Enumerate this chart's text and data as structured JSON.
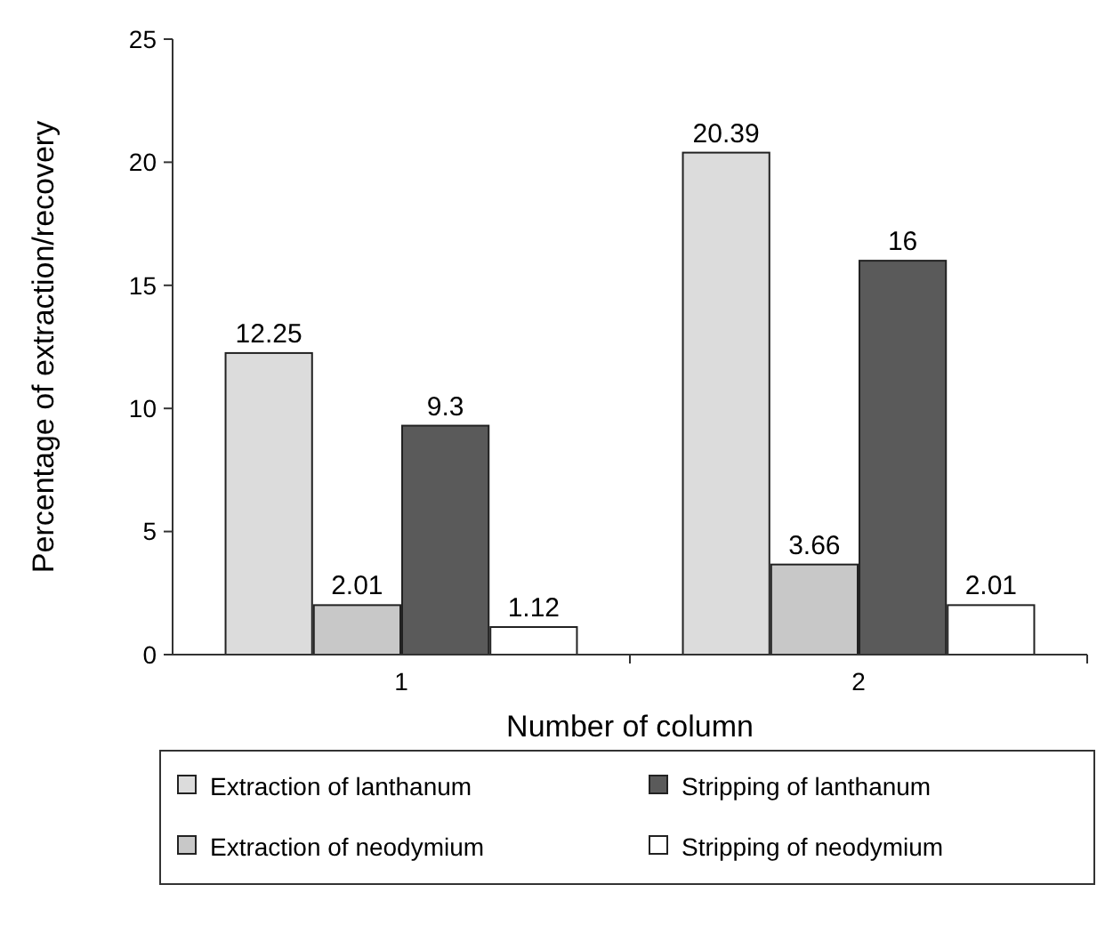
{
  "chart_data": {
    "type": "bar",
    "xlabel": "Number of column",
    "ylabel": "Percentage of extraction/recovery",
    "categories": [
      "1",
      "2"
    ],
    "series": [
      {
        "name": "Extraction of lanthanum",
        "color": "#dcdcdc",
        "values": [
          12.25,
          20.39
        ]
      },
      {
        "name": "Extraction of neodymium",
        "color": "#c8c8c8",
        "values": [
          2.01,
          3.66
        ]
      },
      {
        "name": "Stripping of lanthanum",
        "color": "#5a5a5a",
        "values": [
          9.3,
          16
        ]
      },
      {
        "name": "Stripping of neodymium",
        "color": "#ffffff",
        "values": [
          1.12,
          2.01
        ]
      }
    ],
    "ylim": [
      0,
      25
    ],
    "yticks": [
      0,
      5,
      10,
      15,
      20,
      25
    ],
    "data_labels": true,
    "legend": "bottom",
    "grid": false
  }
}
